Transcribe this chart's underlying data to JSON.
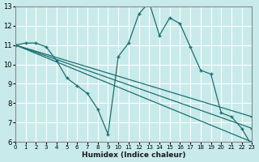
{
  "xlabel": "Humidex (Indice chaleur)",
  "bg_color": "#c8eaea",
  "grid_color": "#ffffff",
  "line_color": "#1a7070",
  "xlim": [
    0,
    23
  ],
  "ylim": [
    6,
    13
  ],
  "xticks": [
    0,
    1,
    2,
    3,
    4,
    5,
    6,
    7,
    8,
    9,
    10,
    11,
    12,
    13,
    14,
    15,
    16,
    17,
    18,
    19,
    20,
    21,
    22,
    23
  ],
  "yticks": [
    6,
    7,
    8,
    9,
    10,
    11,
    12,
    13
  ],
  "lines": [
    {
      "x": [
        0,
        1,
        2,
        3,
        4,
        5,
        6,
        7,
        8,
        9,
        10,
        11,
        12,
        13,
        14,
        15,
        16,
        17,
        18,
        19,
        20,
        21,
        22,
        23
      ],
      "y": [
        11,
        11.1,
        11.1,
        10.9,
        10.2,
        9.3,
        8.9,
        8.5,
        7.7,
        6.4,
        10.4,
        11.1,
        12.6,
        13.2,
        11.5,
        12.4,
        12.1,
        10.9,
        9.7,
        9.5,
        7.5,
        7.3,
        6.7,
        5.8
      ]
    },
    {
      "x": [
        0,
        23
      ],
      "y": [
        11,
        6.0
      ]
    },
    {
      "x": [
        0,
        23
      ],
      "y": [
        11,
        6.7
      ]
    },
    {
      "x": [
        0,
        23
      ],
      "y": [
        11,
        7.3
      ]
    }
  ]
}
